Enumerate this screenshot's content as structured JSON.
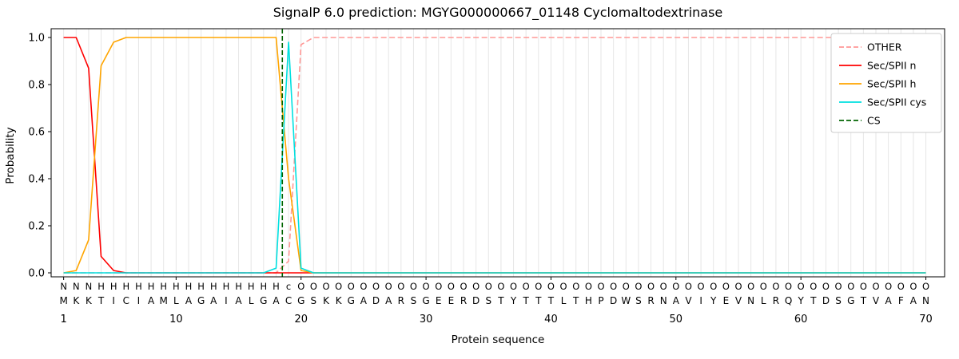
{
  "title": "SignalP 6.0 prediction: MGYG000000667_01148 Cyclomaltodextrinase",
  "axes": {
    "xlabel": "Protein sequence",
    "ylabel": "Probability",
    "x_ticks": [
      1,
      10,
      20,
      30,
      40,
      50,
      60,
      70
    ],
    "y_ticks": [
      "0.0",
      "0.2",
      "0.4",
      "0.6",
      "0.8",
      "1.0"
    ],
    "xlim": [
      0,
      71.5
    ],
    "ylim": [
      -0.02,
      1.05
    ],
    "grid": "vertical-per-residue",
    "grid_max": 70
  },
  "colors": {
    "grid": "#e6e6e6",
    "spine": "#000000",
    "background": "#ffffff",
    "legend_border": "#cccccc"
  },
  "chart_data": {
    "type": "line",
    "x_start": 1,
    "legend_position": "upper right",
    "series": [
      {
        "name": "OTHER",
        "color": "#ff9896",
        "dashed": true,
        "values": [
          0,
          0,
          0,
          0,
          0,
          0,
          0,
          0,
          0,
          0,
          0,
          0,
          0,
          0,
          0,
          0,
          0,
          0,
          0.05,
          0.97,
          1,
          1,
          1,
          1,
          1,
          1,
          1,
          1,
          1,
          1,
          1,
          1,
          1,
          1,
          1,
          1,
          1,
          1,
          1,
          1,
          1,
          1,
          1,
          1,
          1,
          1,
          1,
          1,
          1,
          1,
          1,
          1,
          1,
          1,
          1,
          1,
          1,
          1,
          1,
          1,
          1,
          1,
          1,
          1,
          1,
          1,
          1,
          1,
          1,
          1
        ]
      },
      {
        "name": "Sec/SPII n",
        "color": "#ff0000",
        "dashed": false,
        "values": [
          1,
          1,
          0.87,
          0.07,
          0.01,
          0,
          0,
          0,
          0,
          0,
          0,
          0,
          0,
          0,
          0,
          0,
          0,
          0,
          0,
          0,
          0,
          0,
          0,
          0,
          0,
          0,
          0,
          0,
          0,
          0,
          0,
          0,
          0,
          0,
          0,
          0,
          0,
          0,
          0,
          0,
          0,
          0,
          0,
          0,
          0,
          0,
          0,
          0,
          0,
          0,
          0,
          0,
          0,
          0,
          0,
          0,
          0,
          0,
          0,
          0,
          0,
          0,
          0,
          0,
          0,
          0,
          0,
          0,
          0,
          0
        ]
      },
      {
        "name": "Sec/SPII h",
        "color": "#ffa500",
        "dashed": false,
        "values": [
          0,
          0.01,
          0.14,
          0.88,
          0.98,
          1,
          1,
          1,
          1,
          1,
          1,
          1,
          1,
          1,
          1,
          1,
          1,
          1,
          0.4,
          0.01,
          0,
          0,
          0,
          0,
          0,
          0,
          0,
          0,
          0,
          0,
          0,
          0,
          0,
          0,
          0,
          0,
          0,
          0,
          0,
          0,
          0,
          0,
          0,
          0,
          0,
          0,
          0,
          0,
          0,
          0,
          0,
          0,
          0,
          0,
          0,
          0,
          0,
          0,
          0,
          0,
          0,
          0,
          0,
          0,
          0,
          0,
          0,
          0,
          0,
          0
        ]
      },
      {
        "name": "Sec/SPII cys",
        "color": "#00e0e0",
        "dashed": false,
        "values": [
          0,
          0,
          0,
          0,
          0,
          0,
          0,
          0,
          0,
          0,
          0,
          0,
          0,
          0,
          0,
          0,
          0,
          0.02,
          0.98,
          0.02,
          0,
          0,
          0,
          0,
          0,
          0,
          0,
          0,
          0,
          0,
          0,
          0,
          0,
          0,
          0,
          0,
          0,
          0,
          0,
          0,
          0,
          0,
          0,
          0,
          0,
          0,
          0,
          0,
          0,
          0,
          0,
          0,
          0,
          0,
          0,
          0,
          0,
          0,
          0,
          0,
          0,
          0,
          0,
          0,
          0,
          0,
          0,
          0,
          0,
          0
        ]
      }
    ],
    "cs_marker": {
      "name": "CS",
      "x": 18.5,
      "color": "#006400",
      "dashed": true
    }
  },
  "sequence": {
    "residues": "MKKTICIAMLAGAIALGACGSKKGADARSGEERDSTYTTTLTHPDWSRNAVIYEVNLRQYTDSGTVAFAN",
    "region_labels": "NNNHHHHHHHHHHHHHHHcOOOOOOOOOOOOOOOOOOOOOOOOOOOOOOOOOOOOOOOOOOOOOOOOOOO",
    "label_colors": {
      "N": "#ff0000",
      "H": "#ffa500",
      "c": "#00bfc6",
      "O": "#8c8c8c"
    },
    "residue_color": "#1a1a1a"
  }
}
